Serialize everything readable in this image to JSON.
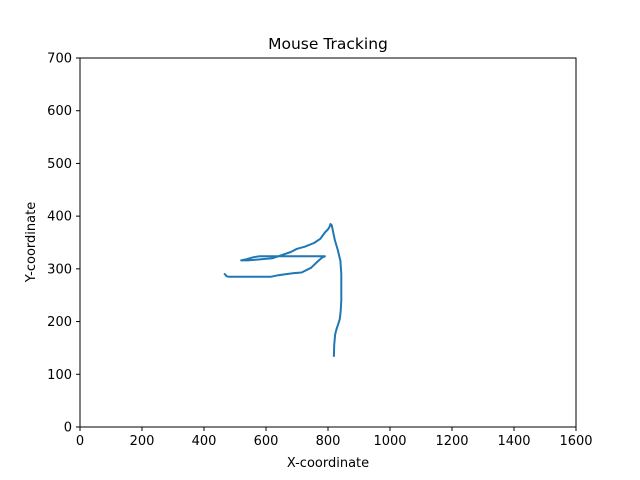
{
  "chart_data": {
    "type": "line",
    "title": "Mouse Tracking",
    "xlabel": "X-coordinate",
    "ylabel": "Y-coordinate",
    "xlim": [
      0,
      1600
    ],
    "ylim": [
      0,
      700
    ],
    "xticks": [
      0,
      200,
      400,
      600,
      800,
      1000,
      1200,
      1400,
      1600
    ],
    "yticks": [
      0,
      100,
      200,
      300,
      400,
      500,
      600,
      700
    ],
    "xtick_labels": [
      "0",
      "200",
      "400",
      "600",
      "800",
      "1000",
      "1200",
      "1400",
      "1600"
    ],
    "ytick_labels": [
      "0",
      "100",
      "200",
      "300",
      "400",
      "500",
      "600",
      "700"
    ],
    "grid": false,
    "legend": "none",
    "series_color": "#1f77b4",
    "series": [
      {
        "x": [
          467,
          473,
          480,
          520,
          560,
          590,
          615,
          640,
          665,
          690,
          715,
          745,
          765,
          780,
          790,
          780,
          720,
          660,
          620,
          600,
          580,
          558,
          535,
          520,
          540,
          560,
          580,
          620,
          650,
          680,
          700,
          725,
          755,
          775,
          790,
          800,
          805,
          808,
          812,
          822,
          832,
          840,
          843,
          843,
          843,
          841,
          838,
          833,
          827,
          823,
          820,
          819
        ],
        "y": [
          290,
          286,
          285,
          285,
          285,
          285,
          285,
          288,
          290,
          292,
          293,
          302,
          313,
          321,
          324,
          324,
          324,
          324,
          324,
          324,
          324,
          322,
          318,
          316,
          316,
          317,
          318,
          320,
          326,
          332,
          338,
          342,
          349,
          357,
          369,
          375,
          380,
          385,
          383,
          355,
          335,
          315,
          290,
          265,
          240,
          220,
          205,
          195,
          185,
          175,
          155,
          135
        ]
      }
    ]
  }
}
